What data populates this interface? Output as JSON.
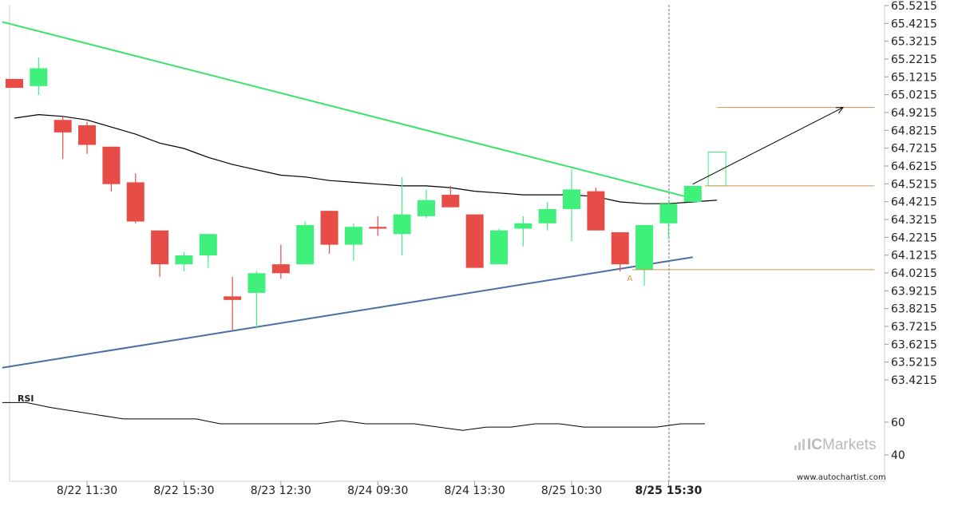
{
  "chart_data": {
    "type": "candlestick",
    "price_axis": {
      "min": 63.4215,
      "max": 65.5215,
      "ticks": [
        "65.5215",
        "65.4215",
        "65.3215",
        "65.2215",
        "65.1215",
        "65.0215",
        "64.9215",
        "64.8215",
        "64.7215",
        "64.6215",
        "64.5215",
        "64.4215",
        "64.3215",
        "64.2215",
        "64.1215",
        "64.0215",
        "63.9215",
        "63.8215",
        "63.7215",
        "63.6215",
        "63.5215",
        "63.4215"
      ]
    },
    "x_labels": [
      {
        "label": "8/22 11:30",
        "index": 3,
        "bold": false
      },
      {
        "label": "8/22 15:30",
        "index": 7,
        "bold": false
      },
      {
        "label": "8/23 12:30",
        "index": 11,
        "bold": false
      },
      {
        "label": "8/24 09:30",
        "index": 15,
        "bold": false
      },
      {
        "label": "8/24 13:30",
        "index": 19,
        "bold": false
      },
      {
        "label": "8/25 10:30",
        "index": 23,
        "bold": false
      },
      {
        "label": "8/25 15:30",
        "index": 27,
        "bold": true
      }
    ],
    "candles": [
      {
        "o": 65.11,
        "h": 65.11,
        "l": 65.06,
        "c": 65.06
      },
      {
        "o": 65.07,
        "h": 65.23,
        "l": 65.02,
        "c": 65.17
      },
      {
        "o": 64.88,
        "h": 64.9,
        "l": 64.66,
        "c": 64.81
      },
      {
        "o": 64.85,
        "h": 64.87,
        "l": 64.69,
        "c": 64.74
      },
      {
        "o": 64.73,
        "h": 64.73,
        "l": 64.48,
        "c": 64.52
      },
      {
        "o": 64.53,
        "h": 64.58,
        "l": 64.3,
        "c": 64.31
      },
      {
        "o": 64.26,
        "h": 64.26,
        "l": 64.0,
        "c": 64.07
      },
      {
        "o": 64.07,
        "h": 64.14,
        "l": 64.03,
        "c": 64.12
      },
      {
        "o": 64.12,
        "h": 64.24,
        "l": 64.05,
        "c": 64.24
      },
      {
        "o": 63.89,
        "h": 64.0,
        "l": 63.7,
        "c": 63.87
      },
      {
        "o": 63.91,
        "h": 64.03,
        "l": 63.71,
        "c": 64.02
      },
      {
        "o": 64.07,
        "h": 64.18,
        "l": 63.99,
        "c": 64.02
      },
      {
        "o": 64.07,
        "h": 64.31,
        "l": 64.07,
        "c": 64.29
      },
      {
        "o": 64.37,
        "h": 64.37,
        "l": 64.13,
        "c": 64.18
      },
      {
        "o": 64.18,
        "h": 64.3,
        "l": 64.09,
        "c": 64.28
      },
      {
        "o": 64.28,
        "h": 64.34,
        "l": 64.23,
        "c": 64.27
      },
      {
        "o": 64.24,
        "h": 64.56,
        "l": 64.12,
        "c": 64.35
      },
      {
        "o": 64.34,
        "h": 64.49,
        "l": 64.33,
        "c": 64.43
      },
      {
        "o": 64.46,
        "h": 64.51,
        "l": 64.39,
        "c": 64.39
      },
      {
        "o": 64.35,
        "h": 64.35,
        "l": 64.05,
        "c": 64.05
      },
      {
        "o": 64.07,
        "h": 64.27,
        "l": 64.07,
        "c": 64.26
      },
      {
        "o": 64.27,
        "h": 64.34,
        "l": 64.17,
        "c": 64.3
      },
      {
        "o": 64.3,
        "h": 64.42,
        "l": 64.26,
        "c": 64.38
      },
      {
        "o": 64.38,
        "h": 64.6,
        "l": 64.2,
        "c": 64.49
      },
      {
        "o": 64.48,
        "h": 64.5,
        "l": 64.26,
        "c": 64.26
      },
      {
        "o": 64.25,
        "h": 64.25,
        "l": 64.03,
        "c": 64.07
      },
      {
        "o": 64.04,
        "h": 64.29,
        "l": 63.95,
        "c": 64.29
      },
      {
        "o": 64.3,
        "h": 64.43,
        "l": 64.21,
        "c": 64.41
      },
      {
        "o": 64.42,
        "h": 64.51,
        "l": 64.42,
        "c": 64.51
      }
    ],
    "projection_candle": {
      "index": 29,
      "o": 64.51,
      "c": 64.7
    },
    "moving_average": [
      {
        "i": 0,
        "v": 64.89
      },
      {
        "i": 1,
        "v": 64.91
      },
      {
        "i": 2,
        "v": 64.9
      },
      {
        "i": 3,
        "v": 64.88
      },
      {
        "i": 4,
        "v": 64.84
      },
      {
        "i": 5,
        "v": 64.8
      },
      {
        "i": 6,
        "v": 64.75
      },
      {
        "i": 7,
        "v": 64.72
      },
      {
        "i": 8,
        "v": 64.67
      },
      {
        "i": 9,
        "v": 64.63
      },
      {
        "i": 10,
        "v": 64.6
      },
      {
        "i": 11,
        "v": 64.57
      },
      {
        "i": 12,
        "v": 64.56
      },
      {
        "i": 13,
        "v": 64.54
      },
      {
        "i": 14,
        "v": 64.53
      },
      {
        "i": 15,
        "v": 64.52
      },
      {
        "i": 16,
        "v": 64.51
      },
      {
        "i": 17,
        "v": 64.51
      },
      {
        "i": 18,
        "v": 64.5
      },
      {
        "i": 19,
        "v": 64.48
      },
      {
        "i": 20,
        "v": 64.47
      },
      {
        "i": 21,
        "v": 64.46
      },
      {
        "i": 22,
        "v": 64.46
      },
      {
        "i": 23,
        "v": 64.46
      },
      {
        "i": 24,
        "v": 64.45
      },
      {
        "i": 25,
        "v": 64.42
      },
      {
        "i": 26,
        "v": 64.41
      },
      {
        "i": 27,
        "v": 64.41
      },
      {
        "i": 28,
        "v": 64.42
      },
      {
        "i": 29,
        "v": 64.43
      }
    ],
    "resistance_line": {
      "x1": -0.5,
      "y1": 65.43,
      "x2": 28,
      "y2": 64.44,
      "color": "#39e36a"
    },
    "support_line": {
      "x1": -0.5,
      "y1": 63.49,
      "x2": 28,
      "y2": 64.11,
      "color": "#4a6fa5"
    },
    "levels": [
      {
        "from": 29,
        "to": 35.5,
        "value": 64.95
      },
      {
        "from": 28.5,
        "to": 35.5,
        "value": 64.51
      },
      {
        "from": 25.5,
        "to": 35.5,
        "value": 64.04
      }
    ],
    "forecast_arrow": {
      "x1": 28,
      "y1": 64.52,
      "x2": 34.2,
      "y2": 64.95
    },
    "point_label": {
      "text": "A",
      "index": 25.4,
      "value": 64.0
    },
    "rsi": {
      "label": "RSI",
      "ticks": [
        "60",
        "40"
      ],
      "min": 30,
      "max": 75,
      "values": [
        {
          "i": -0.5,
          "v": 72
        },
        {
          "i": 0.5,
          "v": 72
        },
        {
          "i": 1.5,
          "v": 69
        },
        {
          "i": 4.5,
          "v": 62
        },
        {
          "i": 7.5,
          "v": 62
        },
        {
          "i": 8.5,
          "v": 59
        },
        {
          "i": 12.5,
          "v": 59
        },
        {
          "i": 13.5,
          "v": 61
        },
        {
          "i": 14.5,
          "v": 59
        },
        {
          "i": 16.5,
          "v": 59
        },
        {
          "i": 18.5,
          "v": 55
        },
        {
          "i": 19.5,
          "v": 57
        },
        {
          "i": 20.5,
          "v": 57
        },
        {
          "i": 21.5,
          "v": 59
        },
        {
          "i": 22.5,
          "v": 59
        },
        {
          "i": 23.5,
          "v": 57
        },
        {
          "i": 26.5,
          "v": 57
        },
        {
          "i": 27.5,
          "v": 59
        },
        {
          "i": 28.5,
          "v": 59
        }
      ]
    },
    "colors": {
      "bull": "#3ff07b",
      "bear": "#e84c46",
      "level": "#d4904e",
      "ma": "#000000",
      "arrow": "#000000",
      "grid": "#e2e2e2"
    }
  },
  "branding": {
    "ic": "IC",
    "markets": "Markets"
  },
  "footer": {
    "site": "www.autochartist.com"
  }
}
